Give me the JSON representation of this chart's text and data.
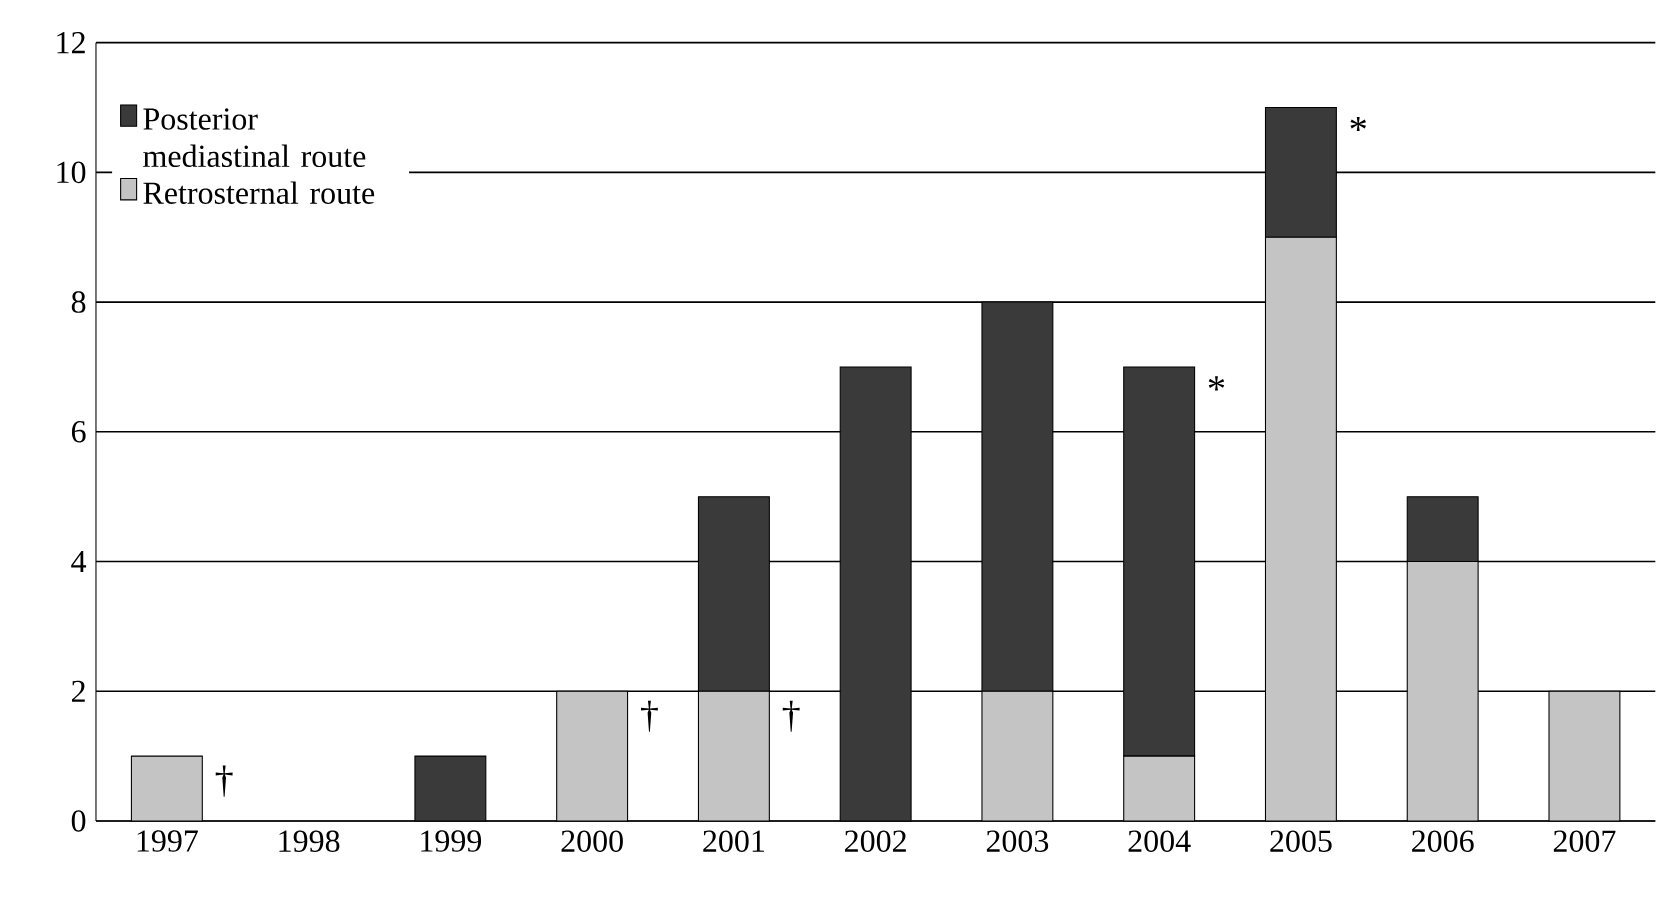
{
  "chart_data": {
    "type": "bar",
    "stacked": true,
    "categories": [
      "1997",
      "1998",
      "1999",
      "2000",
      "2001",
      "2002",
      "2003",
      "2004",
      "2005",
      "2006",
      "2007"
    ],
    "series": [
      {
        "name": "Retrosternal route",
        "color": "#c4c4c4",
        "values": [
          1,
          0,
          0,
          2,
          2,
          0,
          2,
          1,
          9,
          4,
          2
        ]
      },
      {
        "name": "Posterior mediastinal route",
        "color": "#3a3a3a",
        "values": [
          0,
          0,
          1,
          0,
          3,
          7,
          6,
          6,
          2,
          1,
          0
        ]
      }
    ],
    "ylim": [
      0,
      12
    ],
    "yticks": [
      0,
      2,
      4,
      6,
      8,
      10,
      12
    ],
    "grid": "y",
    "legend": "top left",
    "annotations": [
      {
        "text": "†",
        "x": "1997",
        "y": 1
      },
      {
        "text": "†",
        "x": "2000",
        "y": 2
      },
      {
        "text": "†",
        "x": "2001",
        "y": 2
      },
      {
        "text": "*",
        "x": "2004",
        "y": 7
      },
      {
        "text": "*",
        "x": "2005",
        "y": 11
      }
    ]
  }
}
